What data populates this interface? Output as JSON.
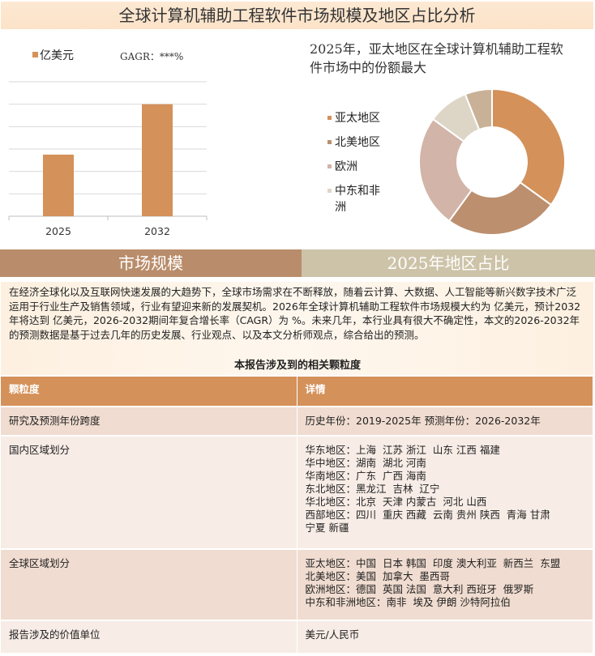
{
  "title": "全球计算机辅助工程软件市场规模及地区占比分析",
  "chart_data": [
    {
      "type": "bar",
      "categories": [
        "2025",
        "2032"
      ],
      "values": [
        2.75,
        5.0
      ],
      "ylim": [
        0,
        6
      ],
      "grid": true,
      "legend": "top-left",
      "series_name": "亿美元",
      "annotation": "GAGR：***%",
      "color": "#d4915a"
    },
    {
      "type": "pie",
      "donut": true,
      "title": "2025年，亚太地区在全球计算机辅助工程软件市场中的份额最大",
      "legend": "left",
      "labels": [
        "亚太地区",
        "北美地区",
        "欧洲",
        "中东和非洲",
        ""
      ],
      "values": [
        35,
        25,
        25,
        9,
        6
      ],
      "colors": [
        "#d4915a",
        "#bc8f6e",
        "#d2b4a8",
        "#ddd6c6",
        "#c8b196"
      ]
    }
  ],
  "tabs": [
    "市场规模",
    "2025年地区占比"
  ],
  "paragraph": "在经济全球化以及互联网快速发展的大趋势下，全球市场需求在不断释放，随着云计算、大数据、人工智能等新兴数字技术广泛运用于行业生产及销售领域，行业有望迎来新的发展契机。2026年全球计算机辅助工程软件市场规模大约为 亿美元，预计2032年将达到 亿美元，2026-2032期间年复合增长率（CAGR）为 %。未来几年，本行业具有很大不确定性，本文的2026-2032年的预测数据是基于过去几年的历史发展、行业观点、以及本文分析师观点，综合给出的预测。",
  "table_title": "本报告涉及到的相关颗粒度",
  "table": {
    "headers": [
      "颗粒度",
      "详情"
    ],
    "rows": [
      {
        "label": "研究及预测年份跨度",
        "lines": [
          "历史年份：2019-2025年 预测年份：2026-2032年"
        ]
      },
      {
        "label": "国内区域划分",
        "lines": [
          "华东地区：上海  江苏 浙江  山东 江西 福建",
          "华中地区：湖南  湖北 河南",
          "华南地区：广东  广西 海南",
          "东北地区：黑龙江  吉林  辽宁",
          "华北地区：北京  天津 内蒙古  河北 山西",
          "西部地区：四川  重庆 西藏  云南 贵州 陕西  青海 甘肃",
          "宁夏 新疆"
        ]
      },
      {
        "label": "全球区域划分",
        "lines": [
          "亚太地区：中国  日本 韩国  印度 澳大利亚  新西兰  东盟",
          "北美地区：美国  加拿大  墨西哥",
          "欧洲地区：德国  英国 法国  意大利 西班牙  俄罗斯",
          "中东和非洲地区：南非  埃及 伊朗 沙特阿拉伯"
        ]
      },
      {
        "label": "报告涉及的价值单位",
        "lines": [
          "美元/人民币"
        ]
      }
    ]
  }
}
